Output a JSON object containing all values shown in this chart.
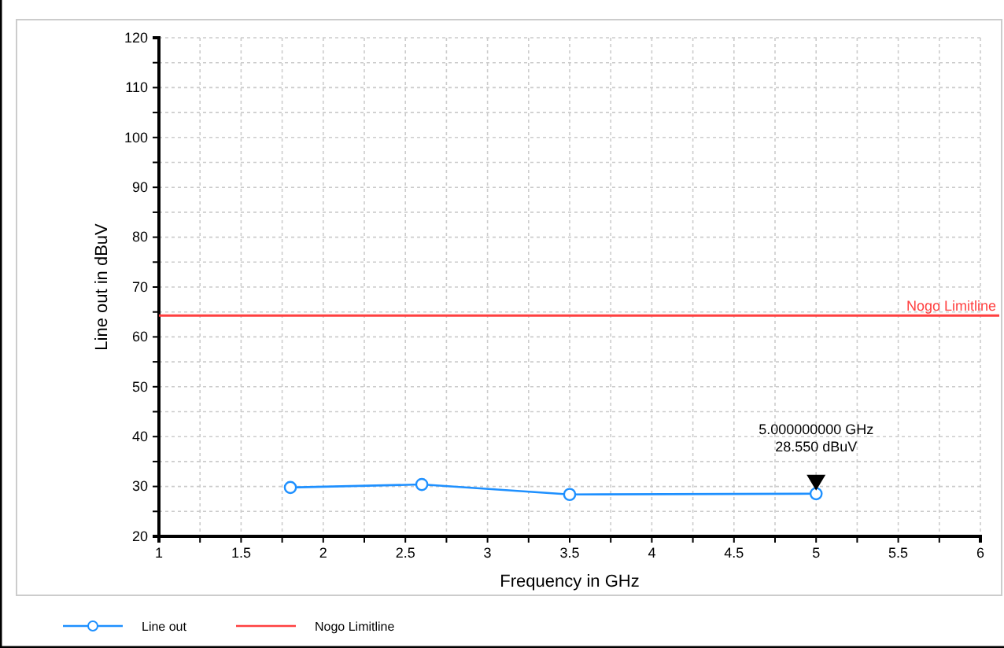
{
  "chart_data": {
    "type": "line",
    "xlabel": "Frequency in GHz",
    "ylabel": "Line out in dBuV",
    "xlim": [
      1,
      6
    ],
    "ylim": [
      20,
      120
    ],
    "xticks": [
      1,
      {
        "value": 1.25,
        "label": null
      },
      1.5,
      {
        "value": 1.75,
        "label": null
      },
      2,
      {
        "value": 2.25,
        "label": null
      },
      2.5,
      {
        "value": 2.75,
        "label": null
      },
      3,
      {
        "value": 3.25,
        "label": null
      },
      3.5,
      {
        "value": 3.75,
        "label": null
      },
      4,
      {
        "value": 4.25,
        "label": null
      },
      4.5,
      {
        "value": 4.75,
        "label": null
      },
      5,
      {
        "value": 5.25,
        "label": null
      },
      5.5,
      {
        "value": 5.75,
        "label": null
      },
      6
    ],
    "yticks": [
      20,
      {
        "value": 25,
        "label": null
      },
      30,
      {
        "value": 35,
        "label": null
      },
      40,
      {
        "value": 45,
        "label": null
      },
      50,
      {
        "value": 55,
        "label": null
      },
      60,
      {
        "value": 65,
        "label": null
      },
      70,
      {
        "value": 75,
        "label": null
      },
      80,
      {
        "value": 85,
        "label": null
      },
      90,
      {
        "value": 95,
        "label": null
      },
      100,
      {
        "value": 105,
        "label": null
      },
      110,
      {
        "value": 115,
        "label": null
      },
      120
    ],
    "x": [
      1.8,
      2.6,
      3.5,
      5
    ],
    "series": [
      {
        "name": "Line out",
        "color": "#1e90ff",
        "values": [
          29.8,
          30.4,
          28.4,
          28.55
        ]
      }
    ],
    "marker": "circle",
    "line_style": "solid",
    "grid": true,
    "legend": "bottom",
    "ref_lines": [
      {
        "axis": "y",
        "value": 64.3,
        "label": "Nogo Limitline",
        "color": "#ff4040"
      }
    ],
    "annotations": [
      {
        "text": "5.000000000 GHz\n28.550 dBuV",
        "x": 5,
        "y": 28.55
      }
    ]
  }
}
